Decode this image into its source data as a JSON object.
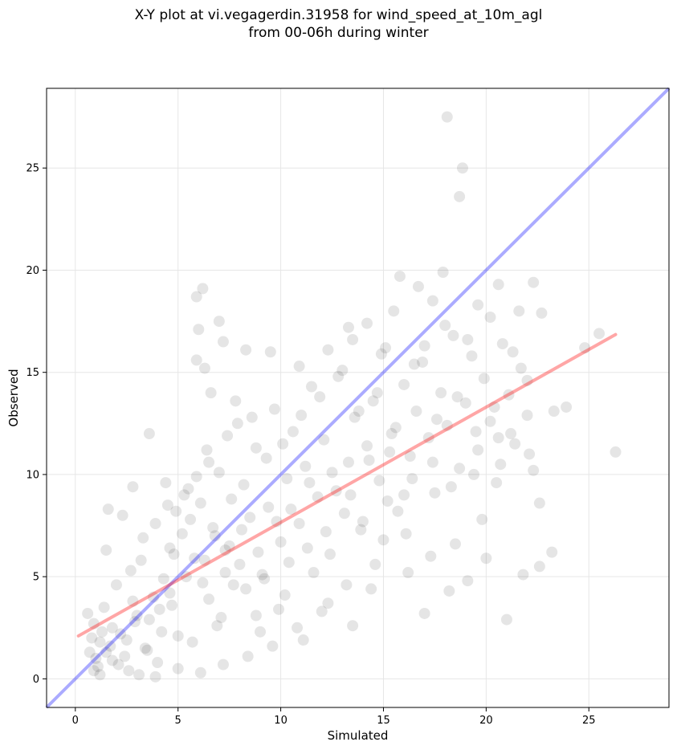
{
  "chart_data": {
    "type": "scatter",
    "title_line1": "X-Y plot at vi.vegagerdin.31958 for wind_speed_at_10m_agl",
    "title_line2": "from 00-06h during winter",
    "xlabel": "Simulated",
    "ylabel": "Observed",
    "xlim": [
      -1.4,
      28.9
    ],
    "ylim": [
      -1.4,
      28.9
    ],
    "xticks": [
      0,
      5,
      10,
      15,
      20,
      25
    ],
    "yticks": [
      0,
      5,
      10,
      15,
      20,
      25
    ],
    "grid": true,
    "point_color": "#000000",
    "identity_line": {
      "color": "#0000ff",
      "from": [
        -1.4,
        -1.4
      ],
      "to": [
        28.9,
        28.9
      ]
    },
    "fit_line": {
      "color": "#ff0000",
      "from": [
        0.15,
        2.1
      ],
      "to": [
        26.3,
        16.85
      ]
    },
    "series": [
      {
        "values": [
          [
            18.1,
            27.5
          ],
          [
            18.85,
            25.0
          ],
          [
            18.7,
            23.6
          ],
          [
            20.6,
            19.3
          ],
          [
            22.3,
            19.4
          ],
          [
            17.9,
            19.9
          ],
          [
            16.7,
            19.2
          ],
          [
            15.8,
            19.7
          ],
          [
            6.2,
            19.1
          ],
          [
            5.9,
            18.7
          ],
          [
            6.0,
            17.1
          ],
          [
            7.0,
            17.5
          ],
          [
            7.2,
            16.5
          ],
          [
            5.9,
            15.6
          ],
          [
            6.3,
            15.2
          ],
          [
            8.3,
            16.1
          ],
          [
            13.3,
            17.2
          ],
          [
            14.2,
            17.4
          ],
          [
            15.5,
            18.0
          ],
          [
            17.4,
            18.5
          ],
          [
            19.6,
            18.3
          ],
          [
            21.6,
            18.0
          ],
          [
            22.7,
            17.9
          ],
          [
            25.5,
            16.9
          ],
          [
            24.8,
            16.2
          ],
          [
            26.3,
            11.1
          ],
          [
            23.9,
            13.3
          ],
          [
            23.3,
            13.1
          ],
          [
            23.2,
            6.2
          ],
          [
            22.6,
            5.5
          ],
          [
            21.0,
            2.9
          ],
          [
            21.8,
            5.1
          ],
          [
            0.6,
            3.2
          ],
          [
            0.8,
            2.0
          ],
          [
            1.0,
            1.0
          ],
          [
            0.9,
            0.4
          ],
          [
            1.2,
            0.2
          ],
          [
            1.5,
            1.3
          ],
          [
            1.8,
            2.5
          ],
          [
            2.1,
            0.7
          ],
          [
            2.5,
            1.9
          ],
          [
            2.8,
            3.8
          ],
          [
            3.1,
            0.2
          ],
          [
            3.4,
            1.5
          ],
          [
            3.6,
            2.9
          ],
          [
            4.0,
            0.8
          ],
          [
            4.3,
            4.9
          ],
          [
            4.6,
            6.4
          ],
          [
            4.9,
            8.2
          ],
          [
            5.2,
            7.1
          ],
          [
            5.5,
            9.3
          ],
          [
            5.8,
            5.9
          ],
          [
            6.1,
            8.6
          ],
          [
            6.4,
            11.2
          ],
          [
            6.7,
            7.4
          ],
          [
            7.0,
            10.1
          ],
          [
            7.3,
            6.3
          ],
          [
            7.6,
            8.8
          ],
          [
            7.9,
            12.5
          ],
          [
            8.2,
            9.5
          ],
          [
            8.5,
            7.9
          ],
          [
            8.8,
            11.3
          ],
          [
            9.1,
            5.1
          ],
          [
            9.4,
            8.4
          ],
          [
            9.7,
            13.2
          ],
          [
            10.0,
            6.7
          ],
          [
            10.3,
            9.8
          ],
          [
            10.6,
            12.1
          ],
          [
            10.9,
            7.6
          ],
          [
            11.2,
            10.4
          ],
          [
            11.5,
            14.3
          ],
          [
            11.8,
            8.9
          ],
          [
            12.1,
            11.7
          ],
          [
            12.4,
            6.1
          ],
          [
            12.7,
            9.2
          ],
          [
            13.0,
            15.1
          ],
          [
            13.3,
            10.6
          ],
          [
            13.6,
            12.8
          ],
          [
            13.9,
            7.3
          ],
          [
            14.2,
            11.4
          ],
          [
            14.5,
            13.6
          ],
          [
            14.8,
            9.7
          ],
          [
            15.1,
            16.2
          ],
          [
            15.4,
            12.0
          ],
          [
            15.7,
            8.2
          ],
          [
            16.0,
            14.4
          ],
          [
            16.3,
            10.9
          ],
          [
            16.6,
            13.1
          ],
          [
            16.9,
            15.5
          ],
          [
            17.2,
            11.8
          ],
          [
            17.5,
            9.1
          ],
          [
            17.8,
            14.0
          ],
          [
            18.1,
            12.4
          ],
          [
            18.4,
            16.8
          ],
          [
            18.7,
            10.3
          ],
          [
            19.0,
            13.5
          ],
          [
            19.3,
            15.8
          ],
          [
            19.6,
            11.2
          ],
          [
            19.9,
            14.7
          ],
          [
            20.2,
            12.6
          ],
          [
            20.5,
            9.6
          ],
          [
            20.8,
            16.4
          ],
          [
            21.1,
            13.9
          ],
          [
            21.4,
            11.5
          ],
          [
            21.7,
            15.2
          ],
          [
            22.0,
            12.9
          ],
          [
            22.3,
            10.2
          ],
          [
            22.6,
            8.6
          ],
          [
            3.2,
            5.8
          ],
          [
            4.1,
            3.4
          ],
          [
            5.0,
            2.1
          ],
          [
            6.2,
            4.7
          ],
          [
            7.1,
            3.0
          ],
          [
            8.0,
            5.6
          ],
          [
            9.0,
            2.3
          ],
          [
            10.2,
            4.1
          ],
          [
            11.1,
            1.9
          ],
          [
            12.3,
            3.7
          ],
          [
            13.5,
            2.6
          ],
          [
            14.4,
            4.4
          ],
          [
            15.0,
            6.8
          ],
          [
            16.2,
            5.2
          ],
          [
            17.0,
            3.2
          ],
          [
            18.2,
            4.3
          ],
          [
            19.1,
            4.8
          ],
          [
            20.0,
            5.9
          ],
          [
            1.5,
            6.3
          ],
          [
            2.3,
            8.0
          ],
          [
            3.6,
            12.0
          ],
          [
            2.8,
            9.4
          ],
          [
            1.6,
            8.3
          ],
          [
            4.4,
            9.6
          ],
          [
            6.6,
            14.0
          ],
          [
            7.8,
            13.6
          ],
          [
            9.5,
            16.0
          ],
          [
            10.9,
            15.3
          ],
          [
            12.3,
            16.1
          ],
          [
            13.5,
            16.6
          ],
          [
            14.9,
            15.9
          ],
          [
            17.0,
            16.3
          ],
          [
            18.0,
            17.3
          ],
          [
            19.1,
            16.6
          ],
          [
            20.2,
            17.7
          ],
          [
            21.3,
            16.0
          ],
          [
            22.0,
            14.6
          ],
          [
            20.7,
            10.5
          ],
          [
            19.8,
            7.8
          ],
          [
            18.5,
            6.6
          ],
          [
            17.3,
            6.0
          ],
          [
            16.1,
            7.1
          ],
          [
            14.6,
            5.6
          ],
          [
            13.2,
            4.6
          ],
          [
            12.0,
            3.3
          ],
          [
            10.8,
            2.5
          ],
          [
            9.6,
            1.6
          ],
          [
            8.4,
            1.1
          ],
          [
            7.2,
            0.7
          ],
          [
            6.1,
            0.3
          ],
          [
            5.0,
            0.5
          ],
          [
            3.9,
            0.1
          ],
          [
            2.6,
            0.4
          ],
          [
            1.8,
            0.9
          ],
          [
            1.2,
            1.8
          ],
          [
            0.9,
            2.7
          ],
          [
            1.4,
            3.5
          ],
          [
            2.0,
            4.6
          ],
          [
            2.7,
            5.3
          ],
          [
            3.3,
            6.9
          ],
          [
            3.9,
            7.6
          ],
          [
            4.5,
            8.5
          ],
          [
            5.3,
            9.0
          ],
          [
            5.9,
            9.9
          ],
          [
            6.5,
            10.6
          ],
          [
            7.4,
            11.9
          ],
          [
            8.6,
            12.8
          ],
          [
            9.3,
            10.8
          ],
          [
            10.1,
            11.5
          ],
          [
            11.0,
            12.9
          ],
          [
            11.9,
            13.8
          ],
          [
            12.8,
            14.8
          ],
          [
            13.8,
            13.1
          ],
          [
            14.7,
            14.0
          ],
          [
            15.6,
            12.3
          ],
          [
            16.5,
            15.4
          ],
          [
            17.6,
            12.7
          ],
          [
            18.6,
            13.8
          ],
          [
            19.5,
            12.1
          ],
          [
            20.4,
            13.3
          ],
          [
            21.2,
            12.0
          ],
          [
            22.1,
            11.0
          ],
          [
            4.8,
            6.1
          ],
          [
            5.6,
            7.8
          ],
          [
            6.8,
            7.0
          ],
          [
            7.5,
            6.5
          ],
          [
            8.1,
            7.3
          ],
          [
            8.9,
            6.2
          ],
          [
            9.8,
            7.7
          ],
          [
            10.5,
            8.3
          ],
          [
            11.4,
            9.6
          ],
          [
            12.5,
            10.1
          ],
          [
            13.4,
            9.0
          ],
          [
            14.3,
            10.7
          ],
          [
            15.3,
            11.1
          ],
          [
            16.4,
            9.8
          ],
          [
            17.4,
            10.6
          ],
          [
            18.3,
            9.4
          ],
          [
            19.4,
            10.0
          ],
          [
            20.6,
            11.8
          ],
          [
            2.2,
            2.2
          ],
          [
            3.0,
            3.1
          ],
          [
            3.8,
            4.0
          ],
          [
            4.6,
            4.2
          ],
          [
            5.4,
            5.0
          ],
          [
            6.3,
            5.8
          ],
          [
            7.3,
            5.2
          ],
          [
            8.3,
            4.4
          ],
          [
            9.2,
            4.9
          ],
          [
            10.4,
            5.7
          ],
          [
            11.3,
            6.4
          ],
          [
            12.2,
            7.2
          ],
          [
            13.1,
            8.1
          ],
          [
            14.0,
            7.7
          ],
          [
            15.2,
            8.7
          ],
          [
            16.0,
            9.0
          ],
          [
            1.1,
            0.6
          ],
          [
            1.7,
            1.6
          ],
          [
            2.4,
            1.1
          ],
          [
            3.5,
            1.4
          ],
          [
            4.2,
            2.3
          ],
          [
            5.7,
            1.8
          ],
          [
            6.9,
            2.6
          ],
          [
            8.8,
            3.1
          ],
          [
            0.7,
            1.3
          ],
          [
            1.3,
            2.3
          ],
          [
            2.9,
            2.8
          ],
          [
            4.7,
            3.6
          ],
          [
            6.5,
            3.9
          ],
          [
            7.7,
            4.6
          ],
          [
            9.9,
            3.4
          ],
          [
            11.6,
            5.2
          ]
        ]
      }
    ]
  }
}
